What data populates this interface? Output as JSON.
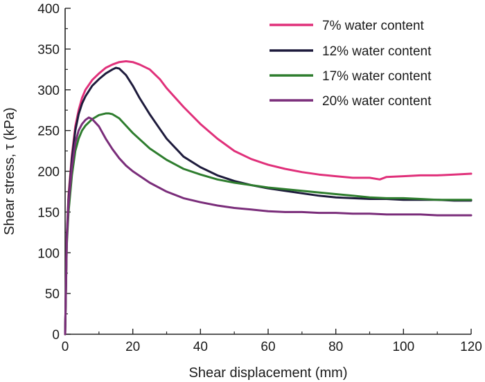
{
  "chart_data": {
    "type": "line",
    "title": "",
    "xlabel": "Shear displacement (mm)",
    "ylabel": "Shear stress, τ (kPa)",
    "xlim": [
      0,
      120
    ],
    "ylim": [
      0,
      400
    ],
    "x_ticks": [
      0,
      20,
      40,
      60,
      80,
      100,
      120
    ],
    "y_ticks": [
      0,
      50,
      100,
      150,
      200,
      250,
      300,
      350,
      400
    ],
    "grid": false,
    "legend_position": "top-right",
    "series": [
      {
        "name": "7% water content",
        "color": "#e0307a",
        "x": [
          0,
          0.5,
          1,
          2,
          3,
          4,
          5,
          6,
          8,
          10,
          12,
          14,
          16,
          18,
          20,
          22,
          25,
          28,
          30,
          35,
          40,
          45,
          50,
          55,
          60,
          65,
          70,
          75,
          80,
          85,
          90,
          93,
          95,
          100,
          105,
          110,
          115,
          120
        ],
        "y": [
          0,
          120,
          170,
          220,
          255,
          275,
          290,
          300,
          312,
          320,
          327,
          331,
          334,
          335,
          334,
          331,
          325,
          313,
          302,
          279,
          258,
          240,
          225,
          215,
          208,
          203,
          199,
          196,
          194,
          192,
          192,
          190,
          193,
          194,
          195,
          195,
          196,
          197
        ]
      },
      {
        "name": "12% water content",
        "color": "#1e1b3c",
        "x": [
          0,
          0.5,
          1,
          2,
          3,
          4,
          5,
          6,
          8,
          10,
          12,
          14,
          15,
          16,
          18,
          20,
          22,
          25,
          28,
          30,
          35,
          40,
          45,
          50,
          55,
          60,
          65,
          70,
          75,
          80,
          85,
          90,
          95,
          100,
          105,
          110,
          115,
          120
        ],
        "y": [
          0,
          120,
          165,
          215,
          250,
          270,
          283,
          292,
          305,
          313,
          320,
          325,
          327,
          326,
          318,
          305,
          290,
          270,
          252,
          240,
          218,
          205,
          195,
          188,
          183,
          179,
          176,
          173,
          170,
          168,
          167,
          166,
          166,
          165,
          165,
          165,
          164,
          164
        ]
      },
      {
        "name": "17% water content",
        "color": "#2e7d2e",
        "x": [
          0,
          0.5,
          1,
          2,
          3,
          4,
          5,
          6,
          7,
          8,
          10,
          12,
          13,
          14,
          16,
          18,
          20,
          25,
          30,
          35,
          40,
          45,
          50,
          55,
          60,
          65,
          70,
          75,
          80,
          85,
          90,
          95,
          100,
          105,
          110,
          115,
          120
        ],
        "y": [
          0,
          110,
          150,
          195,
          225,
          240,
          250,
          256,
          260,
          264,
          269,
          271,
          271,
          270,
          265,
          256,
          247,
          228,
          214,
          203,
          196,
          190,
          186,
          183,
          180,
          178,
          176,
          174,
          172,
          170,
          168,
          167,
          167,
          166,
          165,
          165,
          165
        ]
      },
      {
        "name": "20% water content",
        "color": "#7a2d7a",
        "x": [
          0,
          0.5,
          1,
          2,
          3,
          4,
          5,
          6,
          7,
          8,
          10,
          12,
          14,
          16,
          18,
          20,
          25,
          30,
          35,
          40,
          45,
          50,
          55,
          60,
          65,
          70,
          75,
          80,
          85,
          90,
          95,
          100,
          105,
          110,
          115,
          120
        ],
        "y": [
          0,
          115,
          160,
          205,
          235,
          250,
          258,
          263,
          266,
          264,
          255,
          240,
          227,
          216,
          207,
          200,
          186,
          175,
          167,
          162,
          158,
          155,
          153,
          151,
          150,
          150,
          149,
          149,
          148,
          148,
          147,
          147,
          147,
          146,
          146,
          146
        ]
      }
    ]
  }
}
